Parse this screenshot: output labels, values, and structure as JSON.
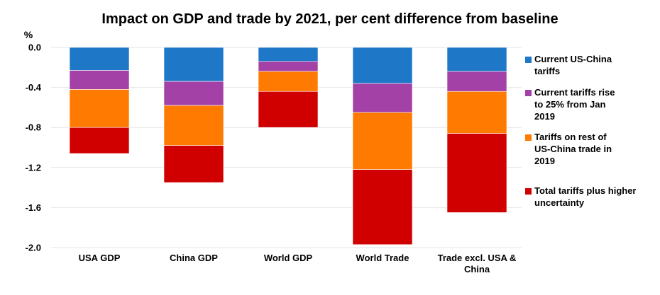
{
  "chart_data": {
    "type": "bar",
    "stacked": true,
    "title": "Impact on GDP and trade by 2021, per cent difference from baseline",
    "ylabel": "%",
    "ylim": [
      -2.0,
      0.0
    ],
    "yticks": [
      "0.0",
      "-0.4",
      "-0.8",
      "-1.2",
      "-1.6",
      "-2.0"
    ],
    "ytick_values": [
      0.0,
      -0.4,
      -0.8,
      -1.2,
      -1.6,
      -2.0
    ],
    "categories": [
      [
        "USA GDP"
      ],
      [
        "China GDP"
      ],
      [
        "World GDP"
      ],
      [
        "World Trade"
      ],
      [
        "Trade excl. USA &",
        "China"
      ]
    ],
    "series": [
      {
        "name": [
          "Current US-China",
          "tariffs"
        ],
        "color": "#1f77c8",
        "values": [
          -0.23,
          -0.34,
          -0.14,
          -0.36,
          -0.24
        ]
      },
      {
        "name": [
          "Current tariffs rise",
          "to 25% from Jan",
          "2019"
        ],
        "color": "#a441a7",
        "values": [
          -0.19,
          -0.24,
          -0.1,
          -0.29,
          -0.2
        ]
      },
      {
        "name": [
          "Tariffs on rest of",
          "US-China trade in",
          "2019"
        ],
        "color": "#ff7a00",
        "values": [
          -0.38,
          -0.4,
          -0.2,
          -0.57,
          -0.42
        ]
      },
      {
        "name": [
          "Total tariffs plus higher",
          "uncertainty"
        ],
        "color": "#d00000",
        "values": [
          -0.26,
          -0.37,
          -0.36,
          -0.75,
          -0.79
        ]
      }
    ],
    "legend_position": "right"
  }
}
